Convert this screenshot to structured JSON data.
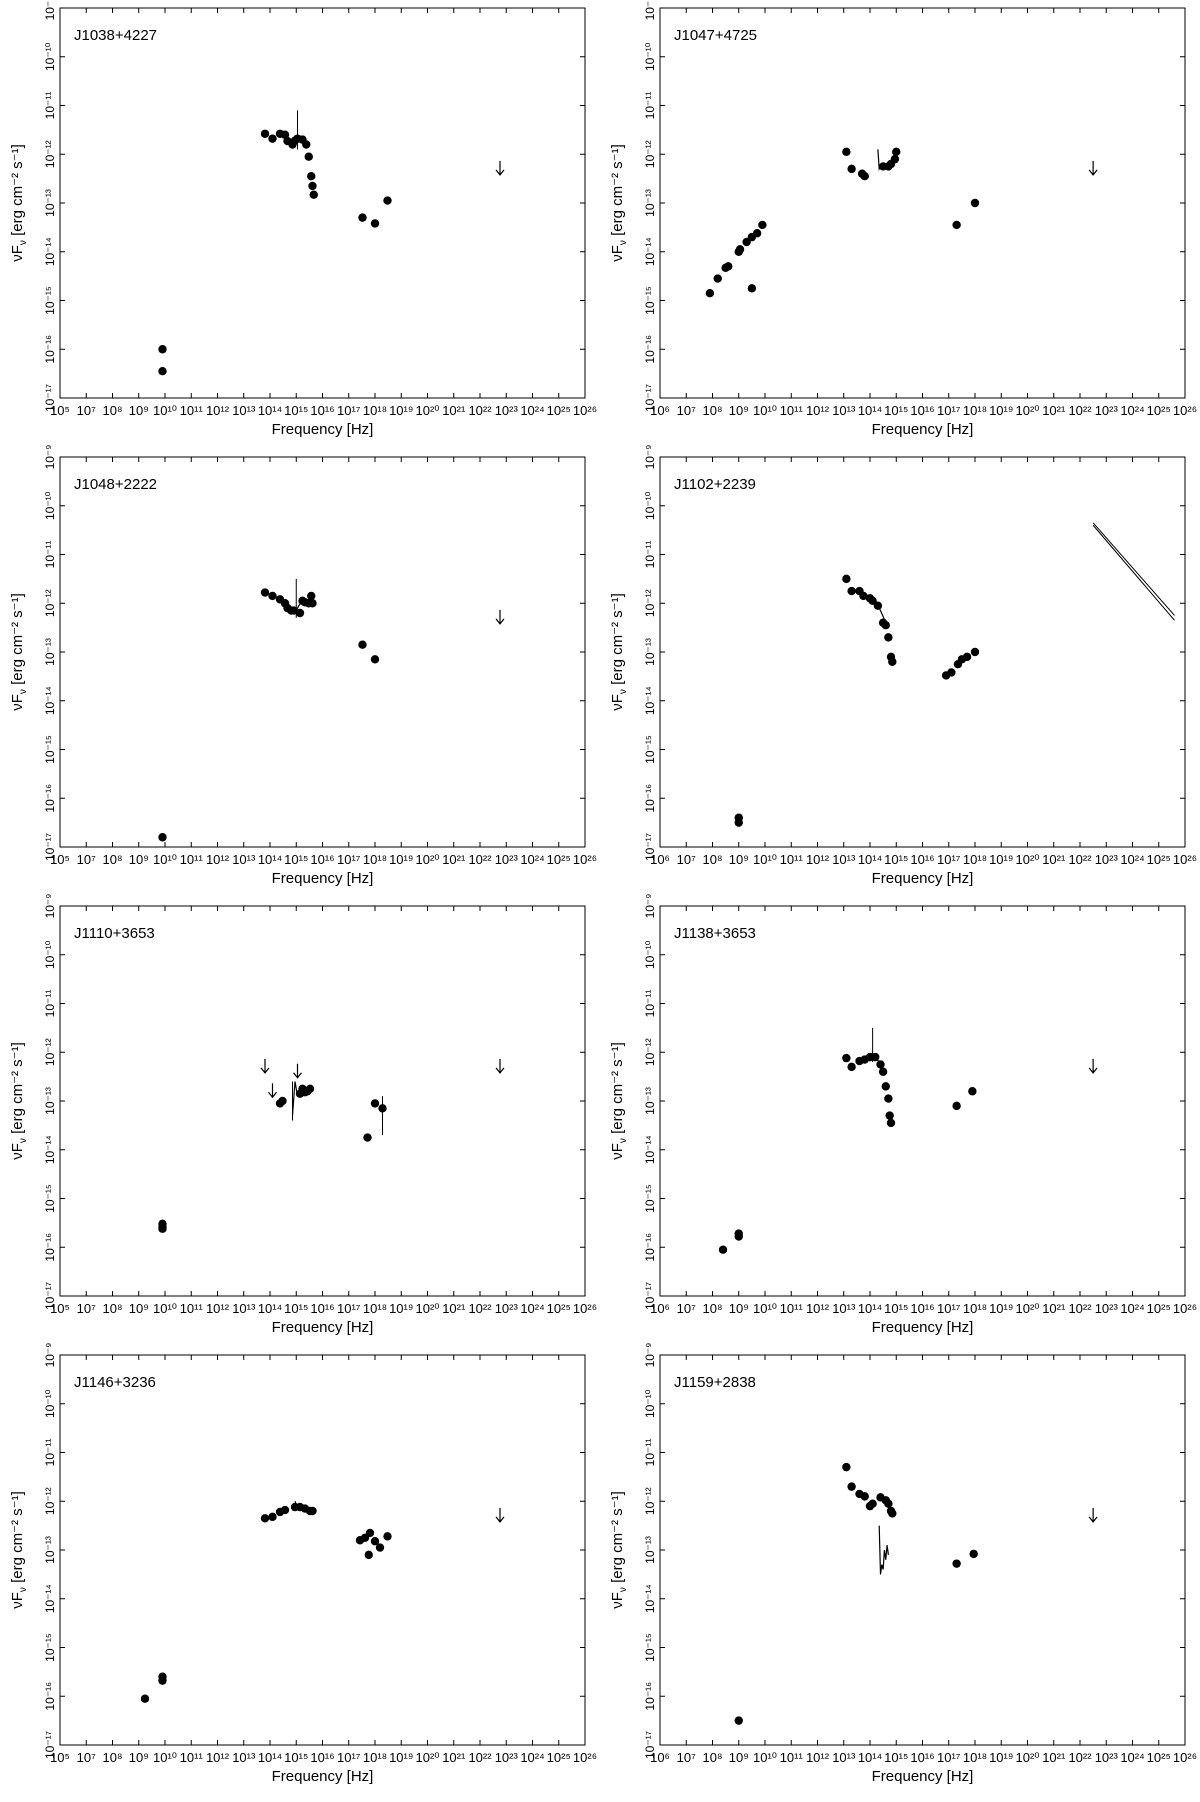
{
  "figure": {
    "xlabel": "Frequency [Hz]",
    "ylabel": "νF",
    "ylabel_sub": "ν",
    "ylabel_unit": " [erg cm⁻² s⁻¹]"
  },
  "chart_data": [
    {
      "type": "scatter",
      "title": "J1038+4227",
      "xlabel": "Frequency [Hz]",
      "ylabel": "νFν [erg cm⁻² s⁻¹]",
      "xscale": "log",
      "yscale": "log",
      "xlim_exp": [
        5,
        26
      ],
      "ylim_exp": [
        -17,
        -9
      ],
      "xticks": [
        "10⁵",
        "10⁷",
        "10⁸",
        "10⁹",
        "10¹⁰",
        "10¹¹",
        "10¹²",
        "10¹³",
        "10¹⁴",
        "10¹⁵",
        "10¹⁶",
        "10¹⁷",
        "10¹⁸",
        "10¹⁹",
        "10²⁰",
        "10²¹",
        "10²²",
        "10²³",
        "10²⁴",
        "10²⁵",
        "10²⁶"
      ],
      "yticks": [
        "10⁻¹⁷",
        "10⁻¹⁶",
        "10⁻¹⁵",
        "10⁻¹⁴",
        "10⁻¹³",
        "10⁻¹²",
        "10⁻¹¹",
        "10⁻¹⁰",
        "10⁻⁹"
      ],
      "points": [
        [
          9.1,
          -16.0
        ],
        [
          9.1,
          -16.45
        ],
        [
          13.2,
          -11.58
        ],
        [
          13.5,
          -11.68
        ],
        [
          13.8,
          -11.58
        ],
        [
          14.0,
          -11.6
        ],
        [
          14.1,
          -11.73
        ],
        [
          14.3,
          -11.8
        ],
        [
          14.4,
          -11.72
        ],
        [
          14.5,
          -11.68
        ],
        [
          14.7,
          -11.7
        ],
        [
          14.85,
          -11.8
        ],
        [
          14.95,
          -12.05
        ],
        [
          15.05,
          -12.45
        ],
        [
          15.1,
          -12.65
        ],
        [
          15.15,
          -12.83
        ],
        [
          17.1,
          -13.3
        ],
        [
          17.6,
          -13.42
        ],
        [
          18.1,
          -12.95
        ]
      ],
      "spectra": [],
      "bars": [
        [
          14.5,
          -11.1,
          -11.9
        ]
      ],
      "upper_limits": [
        [
          22.6,
          -12.3
        ]
      ],
      "butterfly": null
    },
    {
      "type": "scatter",
      "title": "J1047+4725",
      "xlabel": "Frequency [Hz]",
      "ylabel": "νFν [erg cm⁻² s⁻¹]",
      "xscale": "log",
      "yscale": "log",
      "xlim_exp": [
        6,
        26
      ],
      "ylim_exp": [
        -17,
        -9
      ],
      "xticks": [
        "10⁶",
        "10⁷",
        "10⁸",
        "10⁹",
        "10¹⁰",
        "10¹¹",
        "10¹²",
        "10¹³",
        "10¹⁴",
        "10¹⁵",
        "10¹⁶",
        "10¹⁷",
        "10¹⁸",
        "10¹⁹",
        "10²⁰",
        "10²¹",
        "10²²",
        "10²³",
        "10²⁴",
        "10²⁵",
        "10²⁶"
      ],
      "yticks": [
        "10⁻¹⁷",
        "10⁻¹⁶",
        "10⁻¹⁵",
        "10⁻¹⁴",
        "10⁻¹³",
        "10⁻¹²",
        "10⁻¹¹",
        "10⁻¹⁰",
        "10⁻⁹"
      ],
      "points": [
        [
          7.9,
          -14.85
        ],
        [
          8.2,
          -14.55
        ],
        [
          8.5,
          -14.33
        ],
        [
          8.6,
          -14.3
        ],
        [
          9.0,
          -14.0
        ],
        [
          9.05,
          -13.95
        ],
        [
          9.3,
          -13.8
        ],
        [
          9.5,
          -13.7
        ],
        [
          9.7,
          -13.62
        ],
        [
          9.9,
          -13.45
        ],
        [
          9.5,
          -14.75
        ],
        [
          13.1,
          -11.95
        ],
        [
          13.3,
          -12.3
        ],
        [
          13.7,
          -12.4
        ],
        [
          13.8,
          -12.45
        ],
        [
          14.5,
          -12.25
        ],
        [
          14.7,
          -12.25
        ],
        [
          14.8,
          -12.2
        ],
        [
          14.95,
          -12.1
        ],
        [
          15.0,
          -11.95
        ],
        [
          17.3,
          -13.45
        ],
        [
          18.0,
          -13.0
        ]
      ],
      "spectra": [
        [
          [
            14.3,
            -11.9
          ],
          [
            14.35,
            -12.3
          ],
          [
            14.45,
            -12.2
          ],
          [
            14.55,
            -12.25
          ],
          [
            14.7,
            -12.2
          ],
          [
            14.85,
            -12.15
          ],
          [
            15.0,
            -12.0
          ]
        ]
      ],
      "bars": [],
      "upper_limits": [
        [
          22.5,
          -12.3
        ]
      ],
      "butterfly": null
    },
    {
      "type": "scatter",
      "title": "J1048+2222",
      "xlabel": "Frequency [Hz]",
      "ylabel": "νFν [erg cm⁻² s⁻¹]",
      "xscale": "log",
      "yscale": "log",
      "xlim_exp": [
        5,
        26
      ],
      "ylim_exp": [
        -17,
        -9
      ],
      "xticks": [
        "10⁵",
        "10⁷",
        "10⁸",
        "10⁹",
        "10¹⁰",
        "10¹¹",
        "10¹²",
        "10¹³",
        "10¹⁴",
        "10¹⁵",
        "10¹⁶",
        "10¹⁷",
        "10¹⁸",
        "10¹⁹",
        "10²⁰",
        "10²¹",
        "10²²",
        "10²³",
        "10²⁴",
        "10²⁵",
        "10²⁶"
      ],
      "yticks": [
        "10⁻¹⁷",
        "10⁻¹⁶",
        "10⁻¹⁵",
        "10⁻¹⁴",
        "10⁻¹³",
        "10⁻¹²",
        "10⁻¹¹",
        "10⁻¹⁰",
        "10⁻⁹"
      ],
      "points": [
        [
          9.1,
          -16.8
        ],
        [
          13.2,
          -11.78
        ],
        [
          13.5,
          -11.85
        ],
        [
          13.8,
          -11.92
        ],
        [
          14.0,
          -12.0
        ],
        [
          14.1,
          -12.1
        ],
        [
          14.25,
          -12.15
        ],
        [
          14.35,
          -12.15
        ],
        [
          14.6,
          -12.2
        ],
        [
          14.7,
          -11.95
        ],
        [
          14.8,
          -11.98
        ],
        [
          14.95,
          -12.0
        ],
        [
          15.05,
          -11.85
        ],
        [
          15.1,
          -12.0
        ],
        [
          17.1,
          -12.85
        ],
        [
          17.6,
          -13.15
        ]
      ],
      "spectra": [
        [
          [
            14.4,
            -12.2
          ],
          [
            14.55,
            -12.05
          ],
          [
            14.7,
            -11.95
          ],
          [
            14.85,
            -12.0
          ],
          [
            15.0,
            -11.9
          ]
        ]
      ],
      "bars": [
        [
          14.45,
          -11.5,
          -12.3
        ]
      ],
      "upper_limits": [
        [
          22.6,
          -12.3
        ]
      ],
      "butterfly": null
    },
    {
      "type": "scatter",
      "title": "J1102+2239",
      "xlabel": "Frequency [Hz]",
      "ylabel": "νFν [erg cm⁻² s⁻¹]",
      "xscale": "log",
      "yscale": "log",
      "xlim_exp": [
        6,
        26
      ],
      "ylim_exp": [
        -17,
        -9
      ],
      "xticks": [
        "10⁶",
        "10⁷",
        "10⁸",
        "10⁹",
        "10¹⁰",
        "10¹¹",
        "10¹²",
        "10¹³",
        "10¹⁴",
        "10¹⁵",
        "10¹⁶",
        "10¹⁷",
        "10¹⁸",
        "10¹⁹",
        "10²⁰",
        "10²¹",
        "10²²",
        "10²³",
        "10²⁴",
        "10²⁵",
        "10²⁶"
      ],
      "yticks": [
        "10⁻¹⁷",
        "10⁻¹⁶",
        "10⁻¹⁵",
        "10⁻¹⁴",
        "10⁻¹³",
        "10⁻¹²",
        "10⁻¹¹",
        "10⁻¹⁰",
        "10⁻⁹"
      ],
      "points": [
        [
          9.0,
          -16.4
        ],
        [
          9.0,
          -16.5
        ],
        [
          13.1,
          -11.5
        ],
        [
          13.3,
          -11.75
        ],
        [
          13.6,
          -11.75
        ],
        [
          13.75,
          -11.85
        ],
        [
          14.0,
          -11.9
        ],
        [
          14.1,
          -11.95
        ],
        [
          14.3,
          -12.05
        ],
        [
          14.5,
          -12.4
        ],
        [
          14.6,
          -12.45
        ],
        [
          14.7,
          -12.7
        ],
        [
          14.8,
          -13.1
        ],
        [
          14.85,
          -13.2
        ],
        [
          16.9,
          -13.48
        ],
        [
          17.1,
          -13.42
        ],
        [
          17.35,
          -13.25
        ],
        [
          17.5,
          -13.15
        ],
        [
          17.7,
          -13.1
        ],
        [
          18.0,
          -13.0
        ]
      ],
      "spectra": [
        [
          [
            14.0,
            -11.85
          ],
          [
            14.2,
            -11.95
          ],
          [
            14.4,
            -12.15
          ],
          [
            14.6,
            -12.4
          ]
        ]
      ],
      "bars": [],
      "upper_limits": [],
      "butterfly": [
        [
          22.5,
          -10.4,
          -10.35
        ],
        [
          25.6,
          -12.35,
          -12.25
        ]
      ]
    },
    {
      "type": "scatter",
      "title": "J1110+3653",
      "xlabel": "Frequency [Hz]",
      "ylabel": "νFν [erg cm⁻² s⁻¹]",
      "xscale": "log",
      "yscale": "log",
      "xlim_exp": [
        5,
        26
      ],
      "ylim_exp": [
        -17,
        -9
      ],
      "xticks": [
        "10⁵",
        "10⁷",
        "10⁸",
        "10⁹",
        "10¹⁰",
        "10¹¹",
        "10¹²",
        "10¹³",
        "10¹⁴",
        "10¹⁵",
        "10¹⁶",
        "10¹⁷",
        "10¹⁸",
        "10¹⁹",
        "10²⁰",
        "10²¹",
        "10²²",
        "10²³",
        "10²⁴",
        "10²⁵",
        "10²⁶"
      ],
      "yticks": [
        "10⁻¹⁷",
        "10⁻¹⁶",
        "10⁻¹⁵",
        "10⁻¹⁴",
        "10⁻¹³",
        "10⁻¹²",
        "10⁻¹¹",
        "10⁻¹⁰",
        "10⁻⁹"
      ],
      "points": [
        [
          9.1,
          -15.52
        ],
        [
          9.1,
          -15.58
        ],
        [
          9.1,
          -15.62
        ],
        [
          13.8,
          -13.05
        ],
        [
          13.9,
          -13.0
        ],
        [
          14.6,
          -12.85
        ],
        [
          14.7,
          -12.75
        ],
        [
          14.8,
          -12.82
        ],
        [
          14.9,
          -12.8
        ],
        [
          15.0,
          -12.75
        ],
        [
          17.3,
          -13.75
        ],
        [
          17.6,
          -13.05
        ],
        [
          17.9,
          -13.15
        ]
      ],
      "spectra": [
        [
          [
            14.3,
            -13.3
          ],
          [
            14.4,
            -12.6
          ],
          [
            14.5,
            -12.9
          ],
          [
            14.6,
            -12.75
          ],
          [
            14.7,
            -12.8
          ]
        ]
      ],
      "bars": [
        [
          14.3,
          -12.6,
          -13.4
        ],
        [
          17.9,
          -12.9,
          -13.7
        ]
      ],
      "upper_limits": [
        [
          13.2,
          -12.3
        ],
        [
          13.5,
          -12.8
        ],
        [
          14.5,
          -12.4
        ],
        [
          22.6,
          -12.3
        ]
      ],
      "butterfly": null
    },
    {
      "type": "scatter",
      "title": "J1138+3653",
      "xlabel": "Frequency [Hz]",
      "ylabel": "νFν [erg cm⁻² s⁻¹]",
      "xscale": "log",
      "yscale": "log",
      "xlim_exp": [
        6,
        26
      ],
      "ylim_exp": [
        -17,
        -9
      ],
      "xticks": [
        "10⁶",
        "10⁷",
        "10⁸",
        "10⁹",
        "10¹⁰",
        "10¹¹",
        "10¹²",
        "10¹³",
        "10¹⁴",
        "10¹⁵",
        "10¹⁶",
        "10¹⁷",
        "10¹⁸",
        "10¹⁹",
        "10²⁰",
        "10²¹",
        "10²²",
        "10²³",
        "10²⁴",
        "10²⁵",
        "10²⁶"
      ],
      "yticks": [
        "10⁻¹⁷",
        "10⁻¹⁶",
        "10⁻¹⁵",
        "10⁻¹⁴",
        "10⁻¹³",
        "10⁻¹²",
        "10⁻¹¹",
        "10⁻¹⁰",
        "10⁻⁹"
      ],
      "points": [
        [
          8.4,
          -16.05
        ],
        [
          9.0,
          -15.78
        ],
        [
          9.0,
          -15.72
        ],
        [
          13.1,
          -12.12
        ],
        [
          13.3,
          -12.3
        ],
        [
          13.6,
          -12.18
        ],
        [
          13.8,
          -12.15
        ],
        [
          14.0,
          -12.1
        ],
        [
          14.2,
          -12.1
        ],
        [
          14.4,
          -12.25
        ],
        [
          14.5,
          -12.4
        ],
        [
          14.6,
          -12.7
        ],
        [
          14.7,
          -12.95
        ],
        [
          14.75,
          -13.3
        ],
        [
          14.8,
          -13.45
        ],
        [
          17.3,
          -13.1
        ],
        [
          17.9,
          -12.8
        ]
      ],
      "spectra": [
        [
          [
            14.0,
            -12.15
          ],
          [
            14.2,
            -12.1
          ],
          [
            14.35,
            -12.2
          ],
          [
            14.5,
            -12.45
          ]
        ]
      ],
      "bars": [
        [
          14.1,
          -11.5,
          -12.2
        ]
      ],
      "upper_limits": [
        [
          22.5,
          -12.3
        ]
      ],
      "butterfly": null
    },
    {
      "type": "scatter",
      "title": "J1146+3236",
      "xlabel": "Frequency [Hz]",
      "ylabel": "νFν [erg cm⁻² s⁻¹]",
      "xscale": "log",
      "yscale": "log",
      "xlim_exp": [
        5,
        26
      ],
      "ylim_exp": [
        -17,
        -9
      ],
      "xticks": [
        "10⁵",
        "10⁷",
        "10⁸",
        "10⁹",
        "10¹⁰",
        "10¹¹",
        "10¹²",
        "10¹³",
        "10¹⁴",
        "10¹⁵",
        "10¹⁶",
        "10¹⁷",
        "10¹⁸",
        "10¹⁹",
        "10²⁰",
        "10²¹",
        "10²²",
        "10²³",
        "10²⁴",
        "10²⁵",
        "10²⁶"
      ],
      "yticks": [
        "10⁻¹⁷",
        "10⁻¹⁶",
        "10⁻¹⁵",
        "10⁻¹⁴",
        "10⁻¹³",
        "10⁻¹²",
        "10⁻¹¹",
        "10⁻¹⁰",
        "10⁻⁹"
      ],
      "points": [
        [
          8.4,
          -16.05
        ],
        [
          9.1,
          -15.6
        ],
        [
          9.1,
          -15.68
        ],
        [
          13.2,
          -12.35
        ],
        [
          13.5,
          -12.32
        ],
        [
          13.8,
          -12.22
        ],
        [
          14.0,
          -12.18
        ],
        [
          14.4,
          -12.12
        ],
        [
          14.6,
          -12.12
        ],
        [
          14.8,
          -12.15
        ],
        [
          15.0,
          -12.2
        ],
        [
          15.1,
          -12.2
        ],
        [
          17.0,
          -12.8
        ],
        [
          17.2,
          -12.75
        ],
        [
          17.4,
          -12.65
        ],
        [
          17.35,
          -13.1
        ],
        [
          17.6,
          -12.82
        ],
        [
          17.8,
          -12.95
        ],
        [
          18.1,
          -12.72
        ]
      ],
      "spectra": [
        [
          [
            14.4,
            -12.0
          ],
          [
            14.5,
            -12.15
          ],
          [
            14.6,
            -12.05
          ],
          [
            14.75,
            -12.15
          ],
          [
            14.9,
            -12.1
          ]
        ]
      ],
      "bars": [],
      "upper_limits": [
        [
          22.6,
          -12.3
        ]
      ],
      "butterfly": null
    },
    {
      "type": "scatter",
      "title": "J1159+2838",
      "xlabel": "Frequency [Hz]",
      "ylabel": "νFν [erg cm⁻² s⁻¹]",
      "xscale": "log",
      "yscale": "log",
      "xlim_exp": [
        6,
        26
      ],
      "ylim_exp": [
        -17,
        -9
      ],
      "xticks": [
        "10⁶",
        "10⁷",
        "10⁸",
        "10⁹",
        "10¹⁰",
        "10¹¹",
        "10¹²",
        "10¹³",
        "10¹⁴",
        "10¹⁵",
        "10¹⁶",
        "10¹⁷",
        "10¹⁸",
        "10¹⁹",
        "10²⁰",
        "10²¹",
        "10²²",
        "10²³",
        "10²⁴",
        "10²⁵",
        "10²⁶"
      ],
      "yticks": [
        "10⁻¹⁷",
        "10⁻¹⁶",
        "10⁻¹⁵",
        "10⁻¹⁴",
        "10⁻¹³",
        "10⁻¹²",
        "10⁻¹¹",
        "10⁻¹⁰",
        "10⁻⁹"
      ],
      "points": [
        [
          9.0,
          -16.5
        ],
        [
          13.1,
          -11.3
        ],
        [
          13.3,
          -11.7
        ],
        [
          13.6,
          -11.85
        ],
        [
          13.8,
          -11.9
        ],
        [
          14.0,
          -12.1
        ],
        [
          14.1,
          -12.05
        ],
        [
          14.4,
          -11.92
        ],
        [
          14.6,
          -11.98
        ],
        [
          14.7,
          -12.05
        ],
        [
          14.8,
          -12.2
        ],
        [
          14.85,
          -12.25
        ],
        [
          17.3,
          -13.28
        ],
        [
          17.95,
          -13.08
        ]
      ],
      "spectra": [
        [
          [
            14.35,
            -12.5
          ],
          [
            14.4,
            -13.5
          ],
          [
            14.45,
            -13.3
          ],
          [
            14.5,
            -13.4
          ],
          [
            14.55,
            -13.0
          ],
          [
            14.6,
            -13.2
          ],
          [
            14.65,
            -12.9
          ],
          [
            14.7,
            -13.1
          ]
        ]
      ],
      "bars": [],
      "upper_limits": [
        [
          22.5,
          -12.3
        ]
      ],
      "butterfly": null
    }
  ]
}
